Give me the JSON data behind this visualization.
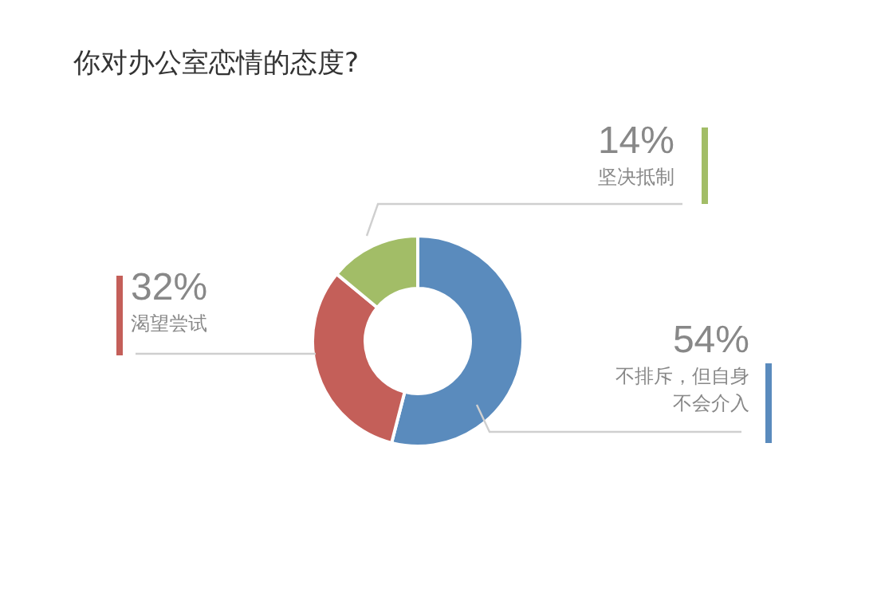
{
  "chart_data": {
    "type": "donut",
    "title": "你对办公室恋情的态度?",
    "categories": [
      "不排斥，但自身不会介入",
      "渴望尝试",
      "坚决抵制"
    ],
    "values": [
      54,
      32,
      14
    ],
    "colors": [
      "#5a8bbd",
      "#c45f59",
      "#a2bd67"
    ],
    "value_labels": [
      "54%",
      "32%",
      "14%"
    ]
  }
}
